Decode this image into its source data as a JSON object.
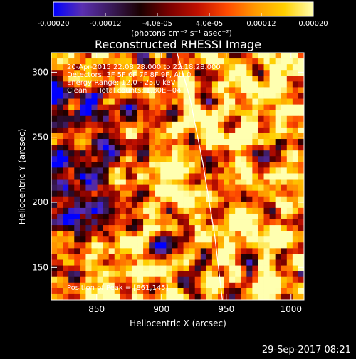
{
  "colorbar": {
    "tick_labels": [
      "-0.00020",
      "-0.00012",
      "-4.0e-05",
      "4.0e-05",
      "0.00012",
      "0.00020"
    ],
    "tick_values": [
      -0.0002,
      -0.00012,
      -4e-05,
      4e-05,
      0.00012,
      0.0002
    ],
    "range": [
      -0.0002,
      0.0002
    ],
    "unit_label": "(photons cm⁻² s⁻¹ asec⁻²)",
    "colormap": [
      "#0000ff",
      "#5a2fb0",
      "#3a1a5a",
      "#1a0000",
      "#7a0000",
      "#c01000",
      "#ff4a00",
      "#ff9a00",
      "#ffd000",
      "#ffffb0"
    ]
  },
  "info_lines": [
    "20-Apr-2015 22:08:28.000 to 22:18:28.000",
    "Detectors: 3F 5F 6F 7F 8F 9F, Att 0",
    "Energy Range: 12.0 - 25.0 keV",
    "Clean     Total counts: 1.30E+04"
  ],
  "peak_text": "Position of Peak = [861,145]",
  "timestamp": "29-Sep-2017 08:21",
  "chart_data": {
    "type": "heatmap",
    "title": "Reconstructed RHESSI Image",
    "xlabel": "Heliocentric X (arcsec)",
    "ylabel": "Heliocentric Y (arcsec)",
    "xlim": [
      815,
      1010
    ],
    "ylim": [
      125,
      315
    ],
    "xticks": [
      850,
      900,
      950,
      1000
    ],
    "yticks": [
      150,
      200,
      250,
      300
    ],
    "limb_line": {
      "x": [
        912,
        922,
        932,
        941,
        947
      ],
      "y": [
        315,
        280,
        230,
        175,
        125
      ]
    },
    "peak": [
      861,
      145
    ]
  }
}
